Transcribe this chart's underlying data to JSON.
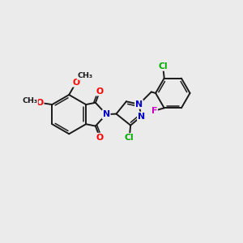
{
  "background_color": "#ebebeb",
  "bond_color": "#1a1a1a",
  "atom_colors": {
    "O": "#ff0000",
    "N": "#0000cc",
    "Cl": "#00aa00",
    "F": "#cc00cc",
    "C": "#1a1a1a"
  },
  "figsize": [
    3.0,
    3.0
  ],
  "dpi": 100
}
